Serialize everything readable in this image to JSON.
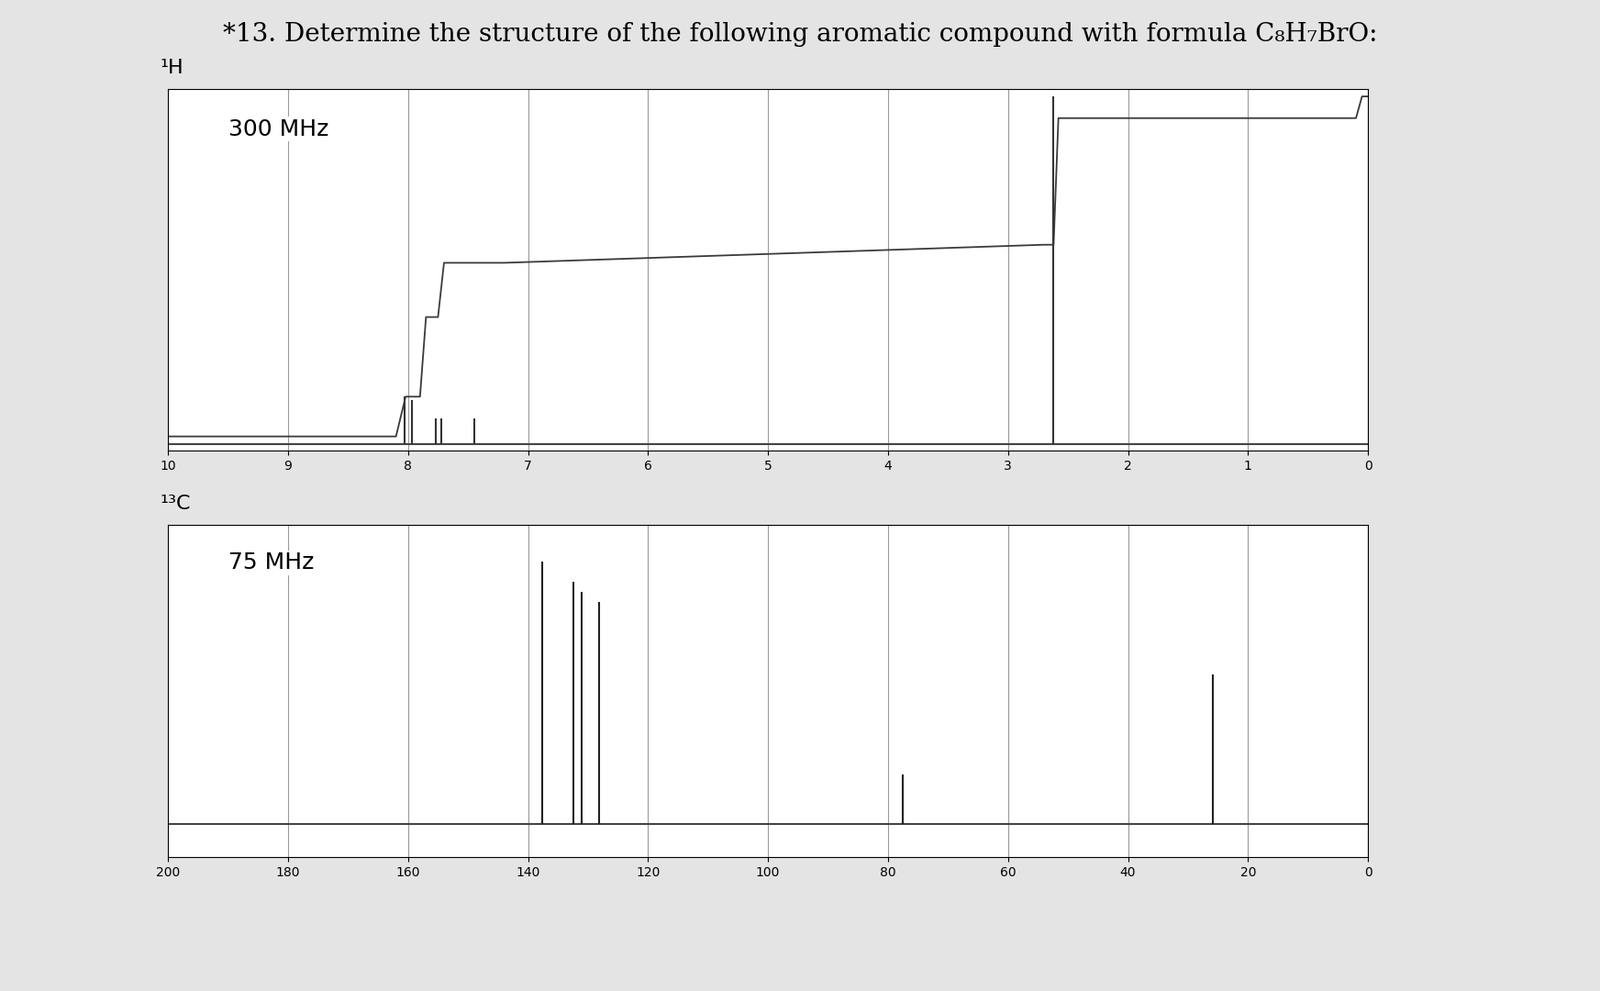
{
  "title": "*13. Determine the structure of the following aromatic compound with formula C₈H₇BrO:",
  "chart_data": [
    {
      "type": "stick",
      "label": "¹H",
      "annotation": "300 MHz",
      "xlim": [
        10,
        0
      ],
      "xticks": [
        10,
        9,
        8,
        7,
        6,
        5,
        4,
        3,
        2,
        1,
        0
      ],
      "ylim": [
        0,
        100
      ],
      "grid": true,
      "tick_labels": "x",
      "baseline": 2,
      "series": [
        {
          "type": "stick",
          "color": "#333333",
          "x": [
            8.03,
            7.97,
            7.77,
            7.72,
            7.45,
            2.62
          ],
          "values": [
            15,
            14,
            9,
            9,
            9,
            98
          ]
        },
        {
          "type": "line",
          "color": "#3a3a3a",
          "x": [
            10,
            8.1,
            8.02,
            7.9,
            7.85,
            7.75,
            7.7,
            7.2,
            2.7,
            2.62,
            2.58,
            0.1,
            0.05,
            0
          ],
          "values": [
            4,
            4,
            15,
            15,
            37,
            37,
            52,
            52,
            57,
            57,
            92,
            92,
            98,
            98
          ]
        }
      ]
    },
    {
      "type": "stick",
      "label": "¹³C",
      "annotation": "75 MHz",
      "xlim": [
        200,
        0
      ],
      "xticks": [
        200,
        180,
        160,
        140,
        120,
        100,
        80,
        60,
        40,
        20,
        0
      ],
      "ylim": [
        0,
        100
      ],
      "grid": true,
      "tick_labels": "x",
      "baseline": 10,
      "series": [
        {
          "type": "stick",
          "color": "#222222",
          "x": [
            137.7,
            132.4,
            131.1,
            128.2,
            77.5,
            25.9
          ],
          "values": [
            89,
            83,
            80,
            77,
            25,
            55
          ]
        }
      ]
    }
  ]
}
